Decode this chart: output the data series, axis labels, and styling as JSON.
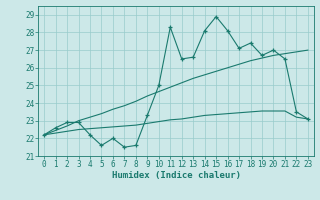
{
  "x": [
    0,
    1,
    2,
    3,
    4,
    5,
    6,
    7,
    8,
    9,
    10,
    11,
    12,
    13,
    14,
    15,
    16,
    17,
    18,
    19,
    20,
    21,
    22,
    23
  ],
  "y_main": [
    22.2,
    22.6,
    22.9,
    22.9,
    22.2,
    21.6,
    22.0,
    21.5,
    21.6,
    23.3,
    25.0,
    28.3,
    26.5,
    26.6,
    28.1,
    28.9,
    28.1,
    27.1,
    27.4,
    26.7,
    27.0,
    26.5,
    23.5,
    23.1
  ],
  "y_trend1": [
    22.2,
    22.45,
    22.7,
    23.0,
    23.2,
    23.4,
    23.65,
    23.85,
    24.1,
    24.4,
    24.65,
    24.9,
    25.15,
    25.4,
    25.6,
    25.8,
    26.0,
    26.2,
    26.4,
    26.55,
    26.7,
    26.8,
    26.9,
    27.0
  ],
  "y_trend2": [
    22.2,
    22.3,
    22.4,
    22.5,
    22.55,
    22.6,
    22.65,
    22.7,
    22.75,
    22.85,
    22.95,
    23.05,
    23.1,
    23.2,
    23.3,
    23.35,
    23.4,
    23.45,
    23.5,
    23.55,
    23.55,
    23.55,
    23.2,
    23.1
  ],
  "line_color": "#1a7a6e",
  "bg_color": "#cce8e8",
  "grid_color": "#99cccc",
  "xlabel": "Humidex (Indice chaleur)",
  "ylim": [
    21,
    29.5
  ],
  "xlim": [
    -0.5,
    23.5
  ],
  "yticks": [
    21,
    22,
    23,
    24,
    25,
    26,
    27,
    28,
    29
  ],
  "xticks": [
    0,
    1,
    2,
    3,
    4,
    5,
    6,
    7,
    8,
    9,
    10,
    11,
    12,
    13,
    14,
    15,
    16,
    17,
    18,
    19,
    20,
    21,
    22,
    23
  ],
  "tick_fontsize": 5.5,
  "xlabel_fontsize": 6.5
}
